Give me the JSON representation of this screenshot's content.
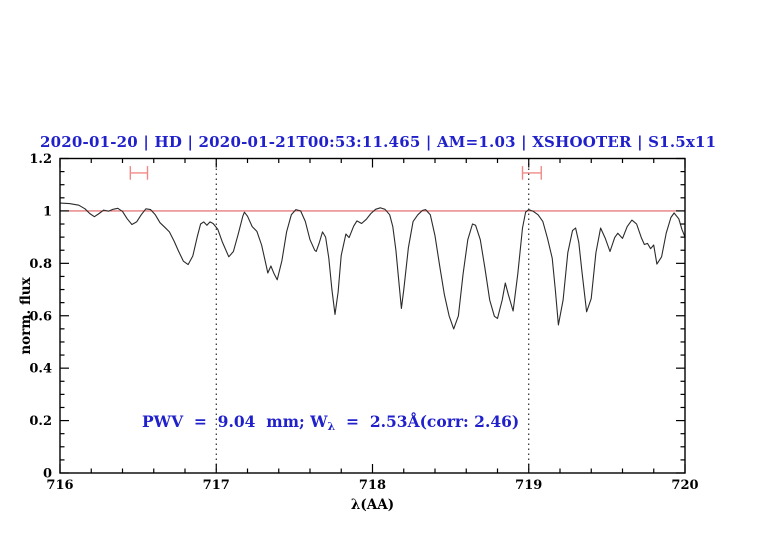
{
  "title": {
    "text": "2020-01-20 | HD | 2020-01-21T00:53:11.465 | AM=1.03 | XSHOOTER | S1.5x11"
  },
  "annotation": {
    "prefix": "PWV  =  9.04  mm; W",
    "sub": "λ",
    "suffix": "  =  2.53Å(corr: 2.46)"
  },
  "colors": {
    "blue": "#2121cc",
    "spectrum": "#2b2b2b",
    "continuum_red": "#e06060",
    "marker_red": "#ef8a87",
    "axis": "#000000"
  },
  "chart_data": {
    "type": "line",
    "title": "2020-01-20 | HD | 2020-01-21T00:53:11.465 | AM=1.03 | XSHOOTER | S1.5x11",
    "xlabel": "λ(AA)",
    "ylabel": "norm. flux",
    "xlim": [
      716,
      720
    ],
    "ylim": [
      0,
      1.2
    ],
    "xticks": [
      716,
      717,
      718,
      719,
      720
    ],
    "xtick_labels": [
      "716",
      "717",
      "718",
      "719",
      "720"
    ],
    "yticks": [
      0,
      0.2,
      0.4,
      0.6,
      0.8,
      1,
      1.2
    ],
    "ytick_labels": [
      "0",
      "0.2",
      "0.4",
      "0.6",
      "0.8",
      "1",
      "1.2"
    ],
    "xminor_step": 0.2,
    "yminor_step": 0.05,
    "grid": false,
    "legend": "none",
    "reference_line_y": 1.0,
    "dotted_vlines": [
      717,
      719
    ],
    "range_markers": [
      {
        "x1": 716.45,
        "x2": 716.56,
        "y": 1.145,
        "cap_half_height": 0.026
      },
      {
        "x1": 718.96,
        "x2": 719.08,
        "y": 1.145,
        "cap_half_height": 0.026
      }
    ],
    "series": [
      {
        "name": "telluric-spectrum",
        "x": [
          716.0,
          716.06,
          716.12,
          716.16,
          716.19,
          716.22,
          716.25,
          716.28,
          716.31,
          716.34,
          716.37,
          716.4,
          716.43,
          716.46,
          716.49,
          716.52,
          716.55,
          716.58,
          716.61,
          716.64,
          716.67,
          716.7,
          716.73,
          716.76,
          716.79,
          716.82,
          716.85,
          716.88,
          716.9,
          716.92,
          716.94,
          716.96,
          716.98,
          717.01,
          717.04,
          717.08,
          717.11,
          717.14,
          717.17,
          717.18,
          717.2,
          717.23,
          717.26,
          717.29,
          717.32,
          717.33,
          717.35,
          717.37,
          717.39,
          717.42,
          717.45,
          717.48,
          717.51,
          717.54,
          717.57,
          717.6,
          717.63,
          717.64,
          717.66,
          717.68,
          717.7,
          717.72,
          717.74,
          717.76,
          717.78,
          717.8,
          717.83,
          717.85,
          717.88,
          717.9,
          717.93,
          717.96,
          717.99,
          718.02,
          718.05,
          718.08,
          718.11,
          718.13,
          718.15,
          718.17,
          718.185,
          718.2,
          718.23,
          718.26,
          718.29,
          718.32,
          718.34,
          718.37,
          718.4,
          718.43,
          718.46,
          718.49,
          718.52,
          718.55,
          718.58,
          718.61,
          718.64,
          718.66,
          718.69,
          718.72,
          718.75,
          718.78,
          718.8,
          718.83,
          718.85,
          718.87,
          718.9,
          718.93,
          718.96,
          718.98,
          719.0,
          719.03,
          719.06,
          719.09,
          719.12,
          719.15,
          719.17,
          719.19,
          719.22,
          719.25,
          719.28,
          719.3,
          719.32,
          719.34,
          719.37,
          719.4,
          719.43,
          719.46,
          719.49,
          719.52,
          719.55,
          719.57,
          719.6,
          719.63,
          719.66,
          719.69,
          719.72,
          719.74,
          719.76,
          719.78,
          719.8,
          719.82,
          719.85,
          719.88,
          719.91,
          719.93,
          719.96,
          719.98,
          720.0
        ],
        "y": [
          1.03,
          1.028,
          1.022,
          1.008,
          0.99,
          0.978,
          0.99,
          1.003,
          0.999,
          1.006,
          1.01,
          0.998,
          0.97,
          0.948,
          0.958,
          0.985,
          1.008,
          1.005,
          0.985,
          0.955,
          0.938,
          0.92,
          0.885,
          0.845,
          0.808,
          0.795,
          0.828,
          0.905,
          0.95,
          0.958,
          0.945,
          0.958,
          0.952,
          0.93,
          0.88,
          0.825,
          0.845,
          0.91,
          0.98,
          0.995,
          0.98,
          0.94,
          0.922,
          0.87,
          0.79,
          0.763,
          0.79,
          0.76,
          0.737,
          0.81,
          0.92,
          0.985,
          1.005,
          1.0,
          0.96,
          0.89,
          0.85,
          0.845,
          0.88,
          0.92,
          0.9,
          0.82,
          0.7,
          0.605,
          0.69,
          0.83,
          0.912,
          0.898,
          0.942,
          0.962,
          0.952,
          0.968,
          0.99,
          1.006,
          1.012,
          1.006,
          0.985,
          0.94,
          0.85,
          0.72,
          0.628,
          0.7,
          0.86,
          0.96,
          0.985,
          1.002,
          1.005,
          0.985,
          0.905,
          0.79,
          0.68,
          0.6,
          0.55,
          0.6,
          0.76,
          0.89,
          0.95,
          0.945,
          0.89,
          0.78,
          0.66,
          0.598,
          0.59,
          0.66,
          0.725,
          0.68,
          0.618,
          0.76,
          0.935,
          0.995,
          1.005,
          0.998,
          0.985,
          0.96,
          0.895,
          0.82,
          0.7,
          0.565,
          0.66,
          0.84,
          0.925,
          0.935,
          0.88,
          0.77,
          0.615,
          0.665,
          0.84,
          0.935,
          0.895,
          0.845,
          0.898,
          0.915,
          0.895,
          0.94,
          0.965,
          0.95,
          0.898,
          0.872,
          0.876,
          0.856,
          0.87,
          0.797,
          0.825,
          0.915,
          0.975,
          0.992,
          0.97,
          0.93,
          0.9
        ]
      }
    ],
    "annotation": "PWV  =  9.04  mm; Wλ  =  2.53Å(corr: 2.46)"
  }
}
